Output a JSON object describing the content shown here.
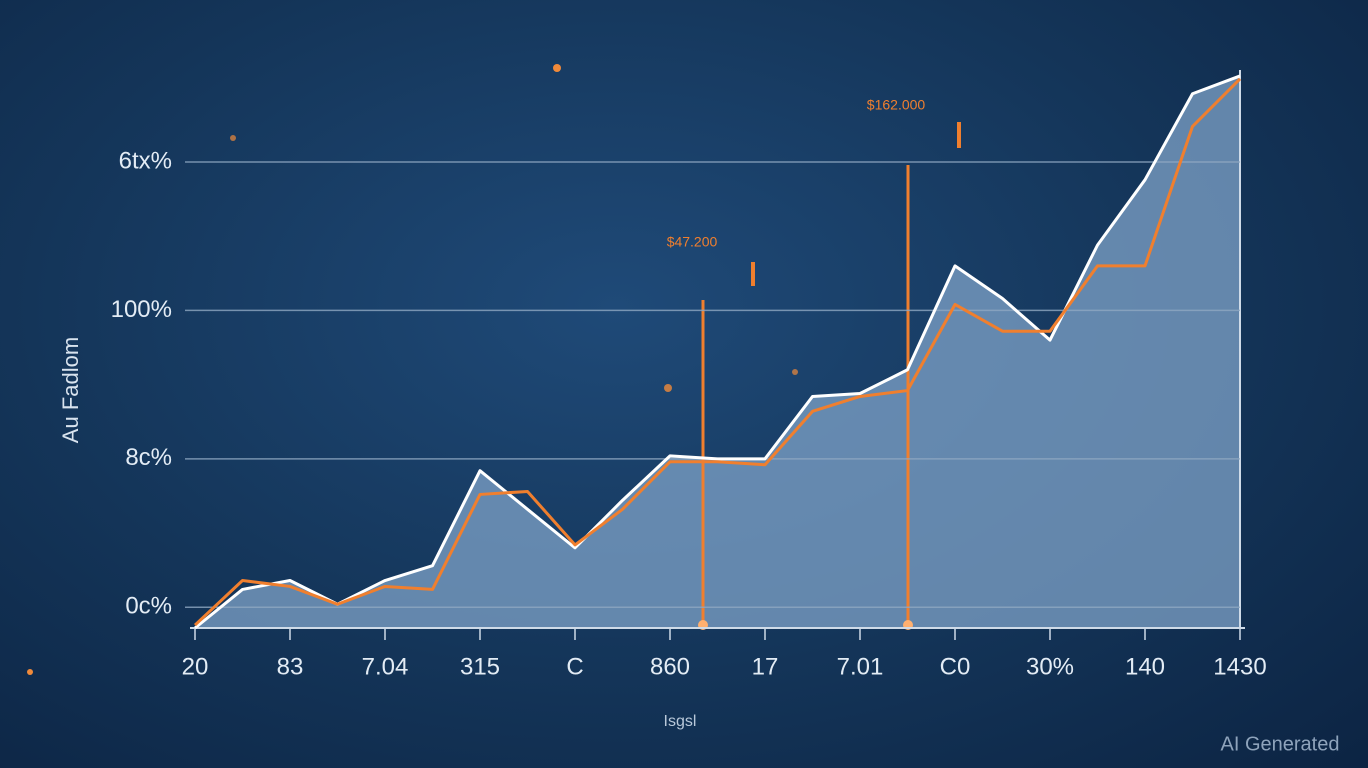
{
  "chart_data": {
    "type": "line",
    "y_label": "Au Fadlom",
    "x_label": "Isgsl",
    "annotations": [
      "$162.000",
      "$47.200"
    ],
    "watermark": "AI Generated",
    "categories": [
      "20",
      null,
      "83",
      null,
      "7.04",
      null,
      "315",
      null,
      "C",
      null,
      "860",
      null,
      "17",
      null,
      "7.01",
      null,
      "C0",
      null,
      "30%",
      null,
      "140",
      null,
      "1430"
    ],
    "series": [
      {
        "color": "#ffffff",
        "values": [
          -7,
          6,
          9,
          1,
          9,
          14,
          46,
          33,
          20,
          36,
          51,
          50,
          50,
          71,
          72,
          80,
          115,
          104,
          90,
          122,
          144,
          173,
          179
        ]
      },
      {
        "color": "#f07f2e",
        "values": [
          -6,
          9,
          7,
          1,
          7,
          6,
          38,
          39,
          21,
          33,
          49,
          49,
          48,
          66,
          71,
          73,
          102,
          93,
          93,
          115,
          115,
          162,
          178
        ]
      }
    ],
    "area_color": "#7fa3c8",
    "ylim": [
      -7,
      181
    ],
    "yticks": [
      {
        "value": 0,
        "label": "0c%"
      },
      {
        "value": 50,
        "label": "8c%"
      },
      {
        "value": 100,
        "label": "100%"
      },
      {
        "value": 150,
        "label": "6tx%"
      }
    ],
    "grid": true
  }
}
